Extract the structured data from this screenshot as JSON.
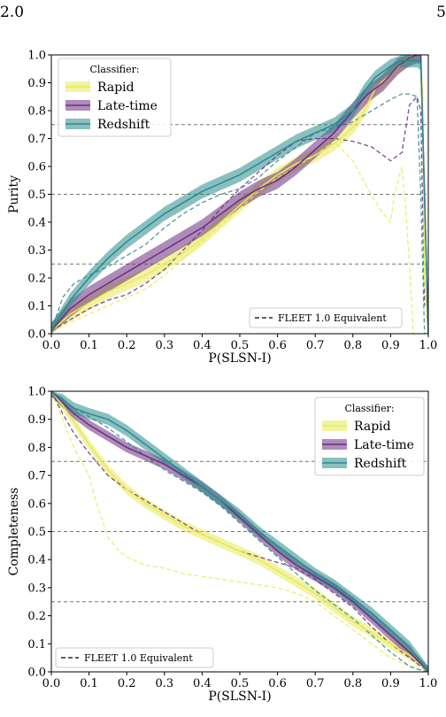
{
  "page": {
    "header_left": "2.0",
    "header_right": "5"
  },
  "colors": {
    "rapid": "#e8ea58",
    "late": "#6b2d7f",
    "redshift": "#2a8a8c",
    "refline": "#777777"
  },
  "chart_data": [
    {
      "type": "line",
      "xlabel": "P(SLSN-I)",
      "ylabel": "Purity",
      "xlim": [
        0,
        1
      ],
      "ylim": [
        0,
        1
      ],
      "ticks": [
        "0.0",
        "0.1",
        "0.2",
        "0.3",
        "0.4",
        "0.5",
        "0.6",
        "0.7",
        "0.8",
        "0.9",
        "1.0"
      ],
      "reference_lines": [
        0.25,
        0.5,
        0.75
      ],
      "legend": {
        "title": "Classifier:",
        "placement": "upper-left",
        "entries": [
          "Rapid",
          "Late-time",
          "Redshift"
        ]
      },
      "legend2": {
        "placement": "lower-right",
        "label": "FLEET 1.0 Equivalent"
      },
      "series": [
        {
          "name": "Rapid",
          "band": 0.025,
          "x": [
            0.0,
            0.05,
            0.1,
            0.15,
            0.2,
            0.25,
            0.3,
            0.35,
            0.4,
            0.45,
            0.5,
            0.55,
            0.6,
            0.65,
            0.7,
            0.75,
            0.8,
            0.83,
            0.86,
            0.9,
            0.93,
            0.96,
            0.97,
            0.98,
            0.985,
            0.99,
            1.0
          ],
          "y": [
            0.01,
            0.07,
            0.11,
            0.15,
            0.18,
            0.21,
            0.25,
            0.29,
            0.34,
            0.4,
            0.46,
            0.52,
            0.57,
            0.61,
            0.64,
            0.68,
            0.74,
            0.8,
            0.88,
            0.93,
            0.97,
            1.0,
            1.0,
            1.0,
            0.85,
            0.2,
            0.0
          ],
          "fleet_x": [
            0.0,
            0.05,
            0.1,
            0.15,
            0.2,
            0.25,
            0.3,
            0.35,
            0.4,
            0.45,
            0.5,
            0.55,
            0.6,
            0.65,
            0.7,
            0.75,
            0.8,
            0.84,
            0.87,
            0.9,
            0.91,
            0.93,
            0.94,
            0.95,
            0.96
          ],
          "fleet_y": [
            0.01,
            0.04,
            0.07,
            0.1,
            0.13,
            0.16,
            0.21,
            0.27,
            0.33,
            0.39,
            0.45,
            0.51,
            0.56,
            0.6,
            0.64,
            0.69,
            0.62,
            0.52,
            0.45,
            0.4,
            0.5,
            0.6,
            0.45,
            0.25,
            0.0
          ]
        },
        {
          "name": "Late-time",
          "band": 0.03,
          "x": [
            0.0,
            0.05,
            0.1,
            0.15,
            0.2,
            0.25,
            0.3,
            0.35,
            0.4,
            0.45,
            0.5,
            0.55,
            0.6,
            0.65,
            0.7,
            0.75,
            0.8,
            0.84,
            0.88,
            0.92,
            0.95,
            0.97,
            0.98,
            0.99,
            1.0
          ],
          "y": [
            0.01,
            0.09,
            0.14,
            0.18,
            0.22,
            0.26,
            0.3,
            0.34,
            0.38,
            0.43,
            0.48,
            0.52,
            0.55,
            0.6,
            0.66,
            0.72,
            0.8,
            0.86,
            0.9,
            0.96,
            0.99,
            1.0,
            1.0,
            0.5,
            0.0
          ],
          "fleet_x": [
            0.0,
            0.05,
            0.1,
            0.15,
            0.2,
            0.25,
            0.3,
            0.35,
            0.4,
            0.45,
            0.5,
            0.55,
            0.6,
            0.65,
            0.7,
            0.75,
            0.8,
            0.85,
            0.9,
            0.93,
            0.95,
            0.97,
            0.98,
            0.99
          ],
          "fleet_y": [
            0.01,
            0.05,
            0.09,
            0.12,
            0.14,
            0.18,
            0.23,
            0.3,
            0.37,
            0.45,
            0.52,
            0.58,
            0.64,
            0.69,
            0.7,
            0.7,
            0.69,
            0.67,
            0.62,
            0.65,
            0.82,
            0.85,
            0.8,
            0.1
          ]
        },
        {
          "name": "Redshift",
          "band": 0.025,
          "x": [
            0.0,
            0.05,
            0.1,
            0.15,
            0.2,
            0.25,
            0.3,
            0.35,
            0.4,
            0.45,
            0.5,
            0.55,
            0.6,
            0.65,
            0.7,
            0.75,
            0.8,
            0.83,
            0.86,
            0.9,
            0.93,
            0.95,
            0.97,
            0.98,
            0.99,
            1.0
          ],
          "y": [
            0.01,
            0.12,
            0.2,
            0.27,
            0.33,
            0.38,
            0.43,
            0.47,
            0.51,
            0.54,
            0.57,
            0.61,
            0.65,
            0.69,
            0.72,
            0.75,
            0.8,
            0.87,
            0.92,
            0.96,
            0.98,
            0.98,
            0.98,
            0.97,
            0.5,
            0.0
          ],
          "fleet_x": [
            0.0,
            0.03,
            0.06,
            0.1,
            0.15,
            0.2,
            0.25,
            0.3,
            0.35,
            0.4,
            0.45,
            0.5,
            0.55,
            0.6,
            0.65,
            0.7,
            0.75,
            0.8,
            0.85,
            0.9,
            0.93,
            0.95,
            0.97,
            0.98,
            0.99
          ],
          "fleet_y": [
            0.01,
            0.13,
            0.18,
            0.21,
            0.24,
            0.28,
            0.32,
            0.38,
            0.43,
            0.47,
            0.5,
            0.52,
            0.56,
            0.62,
            0.67,
            0.72,
            0.74,
            0.76,
            0.8,
            0.84,
            0.86,
            0.86,
            0.85,
            0.5,
            0.0
          ]
        }
      ]
    },
    {
      "type": "line",
      "xlabel": "P(SLSN-I)",
      "ylabel": "Completeness",
      "xlim": [
        0,
        1
      ],
      "ylim": [
        0,
        1
      ],
      "ticks": [
        "0.0",
        "0.1",
        "0.2",
        "0.3",
        "0.4",
        "0.5",
        "0.6",
        "0.7",
        "0.8",
        "0.9",
        "1.0"
      ],
      "reference_lines": [
        0.25,
        0.5,
        0.75
      ],
      "legend": {
        "title": "Classifier:",
        "placement": "upper-right",
        "entries": [
          "Rapid",
          "Late-time",
          "Redshift"
        ]
      },
      "legend2": {
        "placement": "lower-left",
        "label": "FLEET 1.0 Equivalent"
      },
      "series": [
        {
          "name": "Rapid",
          "band": 0.018,
          "x": [
            0.0,
            0.03,
            0.06,
            0.1,
            0.15,
            0.2,
            0.25,
            0.3,
            0.35,
            0.4,
            0.45,
            0.5,
            0.55,
            0.6,
            0.65,
            0.7,
            0.75,
            0.8,
            0.85,
            0.9,
            0.95,
            1.0
          ],
          "y": [
            1.0,
            0.95,
            0.89,
            0.81,
            0.72,
            0.65,
            0.6,
            0.56,
            0.52,
            0.49,
            0.46,
            0.43,
            0.4,
            0.36,
            0.32,
            0.28,
            0.23,
            0.18,
            0.14,
            0.1,
            0.06,
            0.0
          ],
          "fleet_x": [
            0.0,
            0.03,
            0.06,
            0.1,
            0.12,
            0.15,
            0.18,
            0.2,
            0.25,
            0.3,
            0.35,
            0.4,
            0.45,
            0.5,
            0.55,
            0.6,
            0.65,
            0.7,
            0.75,
            0.8,
            0.85,
            0.9,
            0.95,
            1.0
          ],
          "fleet_y": [
            1.0,
            0.9,
            0.8,
            0.7,
            0.6,
            0.48,
            0.43,
            0.41,
            0.38,
            0.37,
            0.35,
            0.34,
            0.33,
            0.32,
            0.31,
            0.3,
            0.28,
            0.25,
            0.2,
            0.15,
            0.1,
            0.05,
            0.02,
            0.0
          ]
        },
        {
          "name": "Late-time",
          "band": 0.018,
          "x": [
            0.0,
            0.03,
            0.06,
            0.1,
            0.15,
            0.2,
            0.25,
            0.3,
            0.35,
            0.4,
            0.45,
            0.5,
            0.55,
            0.6,
            0.65,
            0.7,
            0.75,
            0.8,
            0.85,
            0.9,
            0.95,
            1.0
          ],
          "y": [
            1.0,
            0.96,
            0.92,
            0.88,
            0.84,
            0.8,
            0.77,
            0.74,
            0.7,
            0.66,
            0.61,
            0.55,
            0.49,
            0.43,
            0.38,
            0.34,
            0.3,
            0.25,
            0.19,
            0.13,
            0.07,
            0.0
          ],
          "fleet_x": [
            0.0,
            0.03,
            0.06,
            0.1,
            0.15,
            0.2,
            0.25,
            0.3,
            0.35,
            0.4,
            0.45,
            0.5,
            0.55,
            0.6,
            0.65,
            0.7,
            0.75,
            0.8,
            0.85,
            0.9,
            0.95,
            1.0
          ],
          "fleet_y": [
            1.0,
            0.92,
            0.85,
            0.78,
            0.7,
            0.65,
            0.61,
            0.57,
            0.53,
            0.49,
            0.46,
            0.43,
            0.41,
            0.39,
            0.37,
            0.33,
            0.28,
            0.23,
            0.16,
            0.1,
            0.05,
            0.0
          ]
        },
        {
          "name": "Redshift",
          "band": 0.02,
          "x": [
            0.0,
            0.03,
            0.06,
            0.1,
            0.15,
            0.2,
            0.25,
            0.3,
            0.35,
            0.4,
            0.45,
            0.5,
            0.55,
            0.6,
            0.65,
            0.7,
            0.75,
            0.8,
            0.85,
            0.9,
            0.95,
            1.0
          ],
          "y": [
            1.0,
            0.97,
            0.94,
            0.92,
            0.9,
            0.86,
            0.81,
            0.76,
            0.71,
            0.66,
            0.61,
            0.56,
            0.5,
            0.45,
            0.4,
            0.35,
            0.31,
            0.26,
            0.21,
            0.15,
            0.09,
            0.0
          ],
          "fleet_x": [
            0.0,
            0.03,
            0.06,
            0.1,
            0.15,
            0.2,
            0.25,
            0.3,
            0.35,
            0.4,
            0.45,
            0.5,
            0.55,
            0.6,
            0.65,
            0.7,
            0.75,
            0.8,
            0.85,
            0.9,
            0.93,
            0.95,
            0.97,
            1.0
          ],
          "fleet_y": [
            1.0,
            0.97,
            0.94,
            0.91,
            0.87,
            0.82,
            0.77,
            0.72,
            0.68,
            0.64,
            0.59,
            0.53,
            0.47,
            0.41,
            0.35,
            0.29,
            0.24,
            0.19,
            0.13,
            0.07,
            0.04,
            0.02,
            0.01,
            0.0
          ]
        }
      ]
    }
  ]
}
